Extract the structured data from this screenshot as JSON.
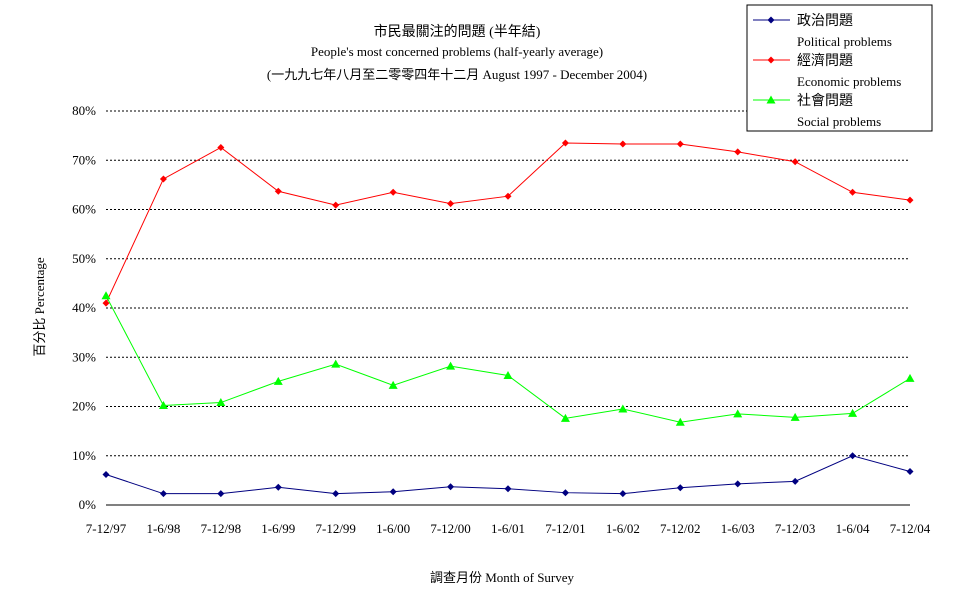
{
  "chart_data": {
    "type": "line",
    "title": "市民最關注的問題 (半年結)",
    "subtitle": "People's most concerned problems (half-yearly average)",
    "subtitle2": "(一九九七年八月至二零零四年十二月 August 1997 - December 2004)",
    "xlabel": "調查月份 Month of Survey",
    "ylabel": "百分比 Percentage",
    "ylim": [
      0,
      80
    ],
    "yticks": [
      "0%",
      "10%",
      "20%",
      "30%",
      "40%",
      "50%",
      "60%",
      "70%",
      "80%"
    ],
    "grid": "horizontal-dashed",
    "legend_position": "top-right",
    "categories": [
      "7-12/97",
      "1-6/98",
      "7-12/98",
      "1-6/99",
      "7-12/99",
      "1-6/00",
      "7-12/00",
      "1-6/01",
      "7-12/01",
      "1-6/02",
      "7-12/02",
      "1-6/03",
      "7-12/03",
      "1-6/04",
      "7-12/04"
    ],
    "series": [
      {
        "name": "政治問題",
        "name_en": "Political problems",
        "color": "#000080",
        "marker": "diamond",
        "values": [
          6.2,
          2.3,
          2.3,
          3.6,
          2.3,
          2.7,
          3.7,
          3.3,
          2.5,
          2.3,
          3.5,
          4.3,
          4.8,
          10.0,
          6.8
        ]
      },
      {
        "name": "經濟問題",
        "name_en": "Economic problems",
        "color": "#ff0000",
        "marker": "diamond",
        "values": [
          41.0,
          66.2,
          72.6,
          63.7,
          60.9,
          63.5,
          61.2,
          62.7,
          73.5,
          73.3,
          73.3,
          71.7,
          69.7,
          63.5,
          61.9
        ]
      },
      {
        "name": "社會問題",
        "name_en": "Social problems",
        "color": "#00ff00",
        "marker": "triangle",
        "values": [
          42.5,
          20.2,
          20.8,
          25.1,
          28.6,
          24.3,
          28.2,
          26.3,
          17.6,
          19.5,
          16.8,
          18.5,
          17.8,
          18.6,
          25.7
        ]
      }
    ]
  }
}
